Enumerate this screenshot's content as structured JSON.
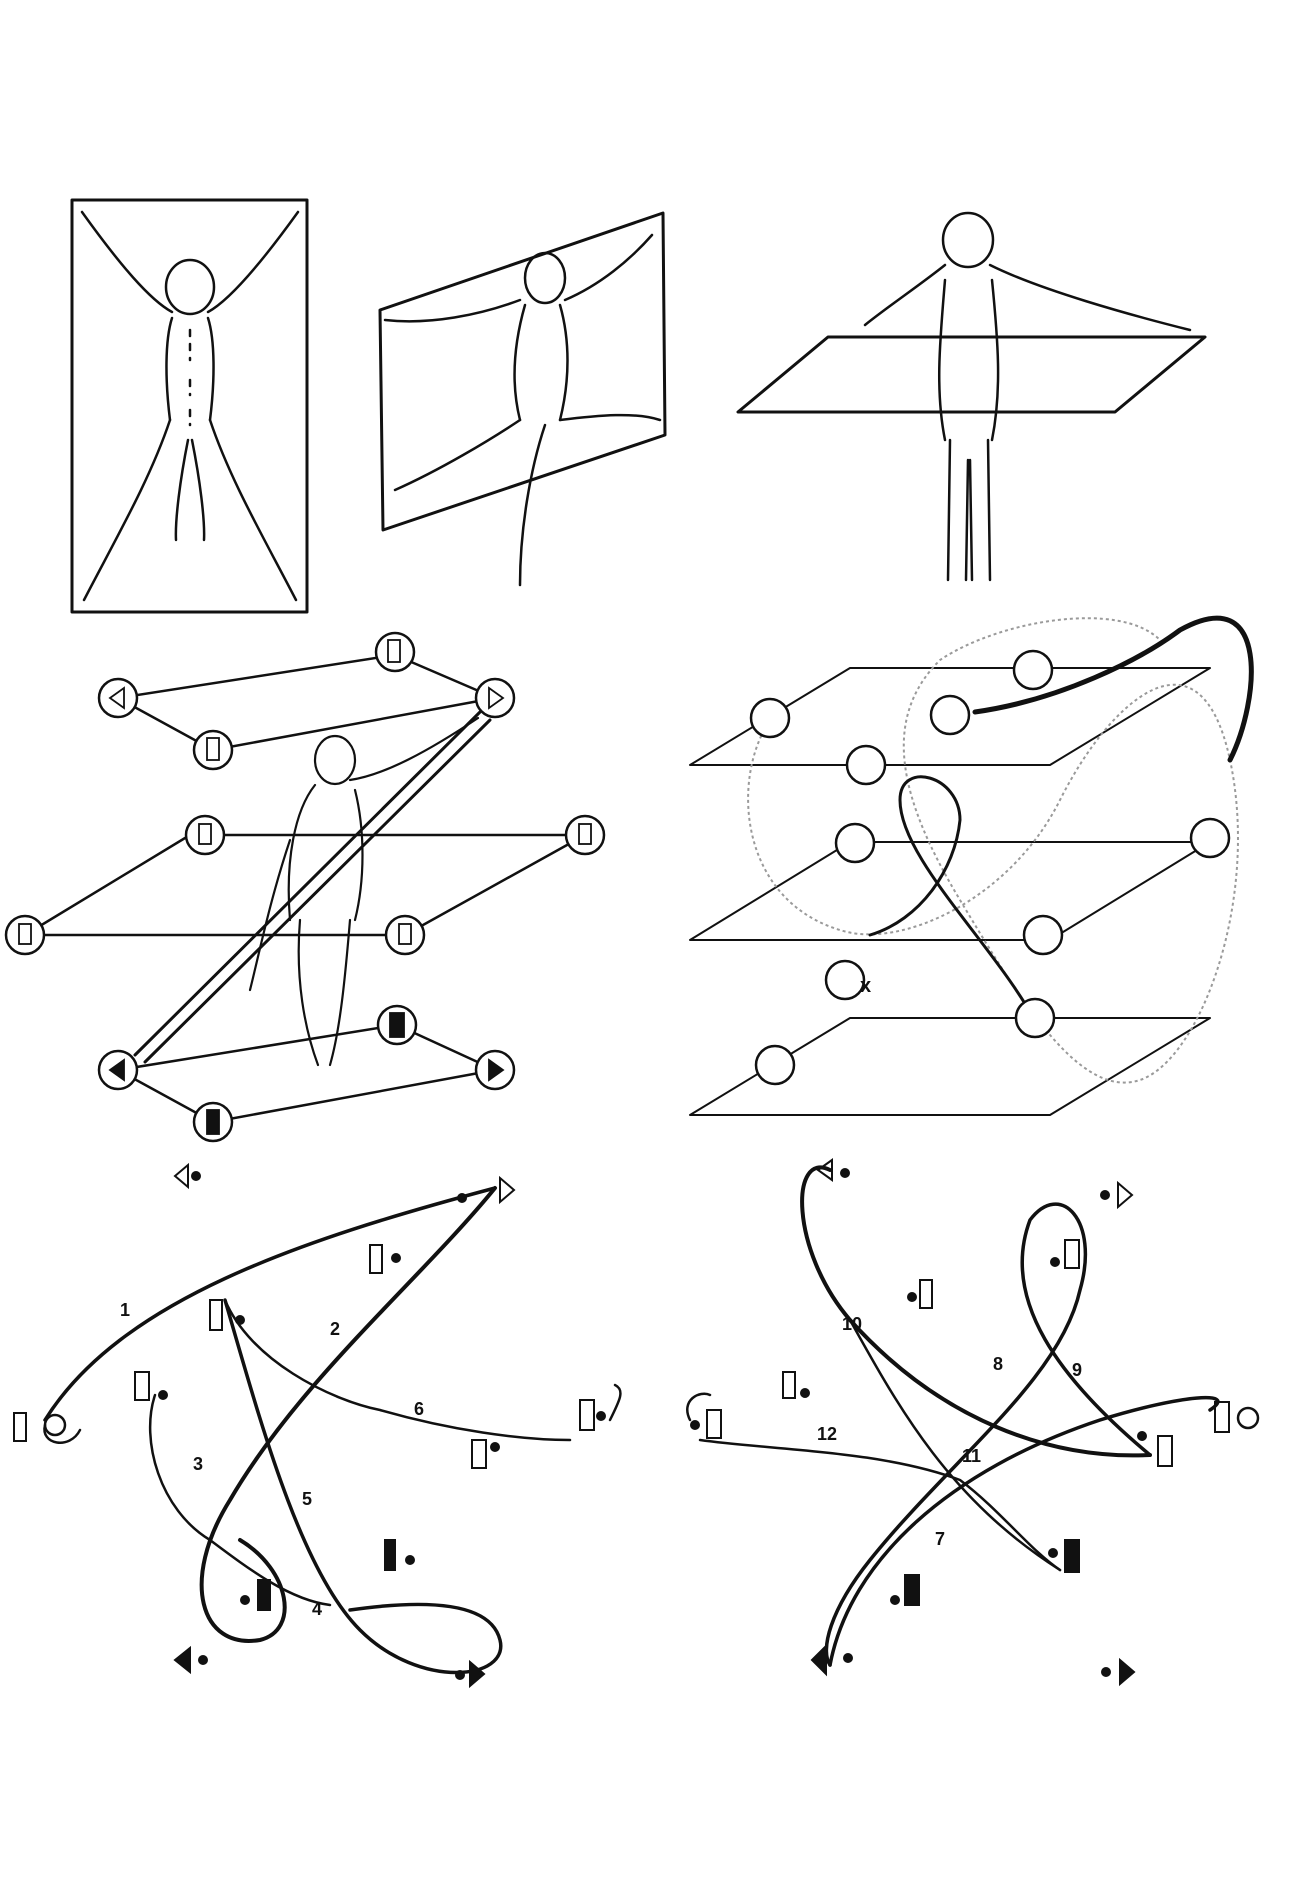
{
  "figure": {
    "top_row": [
      "vertical-door-plane",
      "sagittal-wheel-plane",
      "horizontal-table-plane"
    ],
    "icosahedron_panels": [
      "icosahedron-with-figure",
      "icosahedron-with-trace-curve"
    ],
    "trace_labels": {
      "left": [
        "1",
        "2",
        "3",
        "4",
        "5",
        "6"
      ],
      "right": [
        "7",
        "8",
        "9",
        "10",
        "11",
        "12"
      ],
      "x_mark": "x"
    }
  },
  "colors": {
    "ink": "#111111",
    "background": "#ffffff",
    "pencil": "#9a9a9a"
  },
  "icons": [
    "direction-symbol-icon",
    "start-circle-icon",
    "hook-arrow-icon"
  ]
}
